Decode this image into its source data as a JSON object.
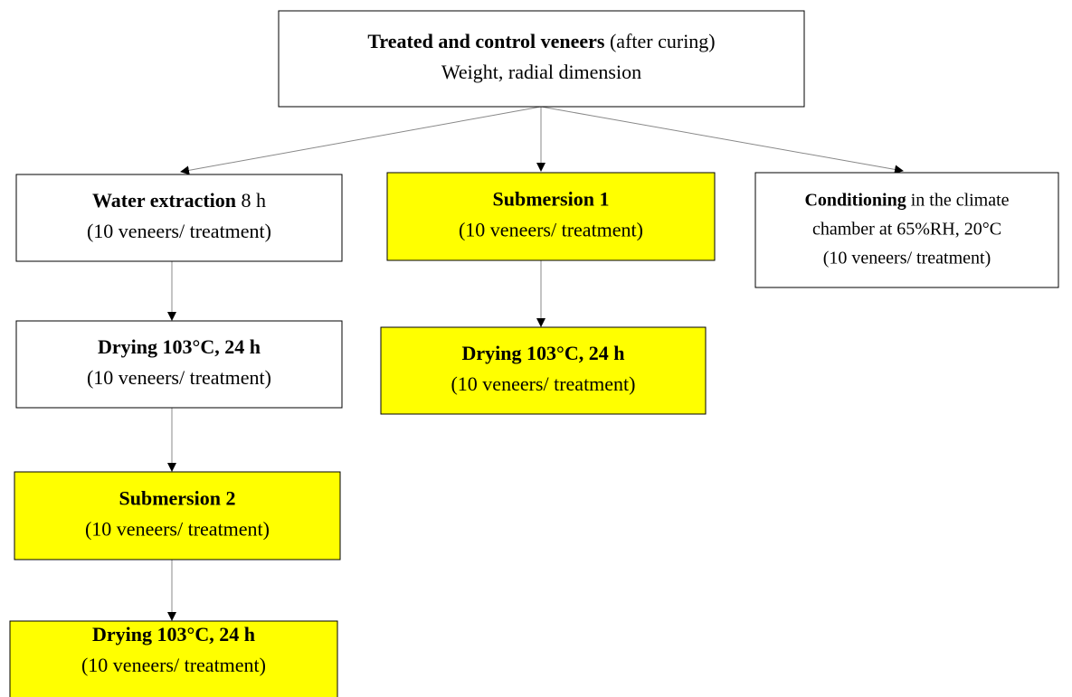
{
  "nodes": [
    {
      "fill": "#ffffff",
      "lines": [
        [
          {
            "text": "Treated and control veneers",
            "bold": true
          },
          {
            "text": " (after curing)",
            "bold": false
          }
        ],
        [
          {
            "text": "Weight, radial dimension",
            "bold": false
          }
        ]
      ]
    },
    {
      "fill": "#ffffff",
      "lines": [
        [
          {
            "text": "Water extraction",
            "bold": true
          },
          {
            "text": " 8 h",
            "bold": false
          }
        ],
        [
          {
            "text": "(10 veneers/ treatment)",
            "bold": false
          }
        ]
      ]
    },
    {
      "fill": "#ffff00",
      "lines": [
        [
          {
            "text": "Submersion 1",
            "bold": true
          }
        ],
        [
          {
            "text": "(10 veneers/ treatment)",
            "bold": false
          }
        ]
      ]
    },
    {
      "fill": "#ffffff",
      "lines": [
        [
          {
            "text": "Conditioning",
            "bold": true
          },
          {
            "text": " in the climate",
            "bold": false
          }
        ],
        [
          {
            "text": "chamber at 65%RH, 20°C",
            "bold": false
          }
        ],
        [
          {
            "text": "(10 veneers/ treatment)",
            "bold": false
          }
        ]
      ]
    },
    {
      "fill": "#ffffff",
      "lines": [
        [
          {
            "text": "Drying 103°C, 24 h",
            "bold": true
          }
        ],
        [
          {
            "text": "(10 veneers/ treatment)",
            "bold": false
          }
        ]
      ]
    },
    {
      "fill": "#ffff00",
      "lines": [
        [
          {
            "text": "Drying 103°C, 24 h",
            "bold": true
          }
        ],
        [
          {
            "text": "(10 veneers/ treatment)",
            "bold": false
          }
        ]
      ]
    },
    {
      "fill": "#ffff00",
      "lines": [
        [
          {
            "text": "Submersion 2",
            "bold": true
          }
        ],
        [
          {
            "text": "(10 veneers/ treatment)",
            "bold": false
          }
        ]
      ]
    },
    {
      "fill": "#ffff00",
      "lines": [
        [
          {
            "text": "Drying 103°C, 24 h",
            "bold": true
          }
        ],
        [
          {
            "text": "(10 veneers/ treatment)",
            "bold": false
          }
        ]
      ]
    }
  ]
}
